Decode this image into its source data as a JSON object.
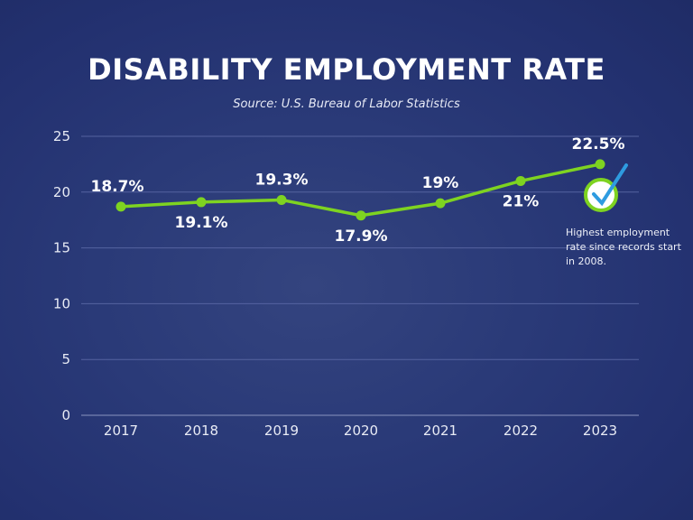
{
  "chart_data": {
    "type": "line",
    "title": "DISABILITY EMPLOYMENT RATE",
    "subtitle": "Source: U.S. Bureau of Labor Statistics",
    "categories": [
      "2017",
      "2018",
      "2019",
      "2020",
      "2021",
      "2022",
      "2023"
    ],
    "values": [
      18.7,
      19.1,
      19.3,
      17.9,
      19,
      21,
      22.5
    ],
    "data_labels": [
      "18.7%",
      "19.1%",
      "19.3%",
      "17.9%",
      "19%",
      "21%",
      "22.5%"
    ],
    "ylim": [
      0,
      25
    ],
    "yticks": [
      "0",
      "5",
      "10",
      "15",
      "20",
      "25"
    ],
    "grid": true,
    "line_color": "#7ed321",
    "annotation": "Highest employment rate since records start in 2008.",
    "annotation_icon": "check-circle-icon"
  }
}
